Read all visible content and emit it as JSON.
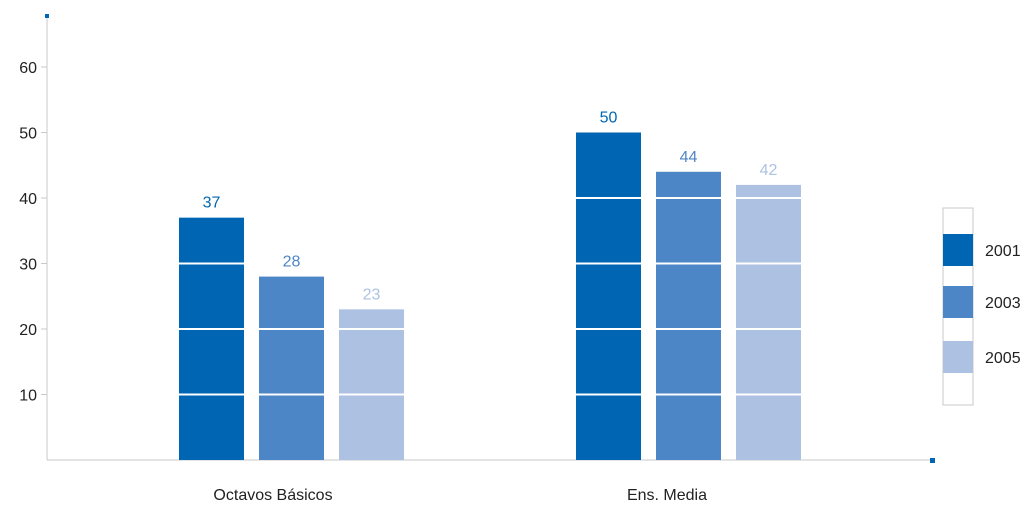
{
  "chart_data": {
    "type": "bar",
    "categories": [
      "Octavos Básicos",
      "Ens. Media"
    ],
    "series": [
      {
        "name": "2001",
        "values": [
          37,
          50
        ],
        "color": "#0066b3"
      },
      {
        "name": "2003",
        "values": [
          28,
          44
        ],
        "color": "#4d86c6"
      },
      {
        "name": "2005",
        "values": [
          23,
          42
        ],
        "color": "#adc2e3"
      }
    ],
    "yticks": [
      10,
      20,
      30,
      40,
      50,
      60
    ],
    "ylim": [
      0,
      70
    ],
    "grid": "white lines across bars at each tick",
    "legend_position": "right",
    "axis_color": "#c8c8c8",
    "axis_marker_color": "#0066b3"
  }
}
